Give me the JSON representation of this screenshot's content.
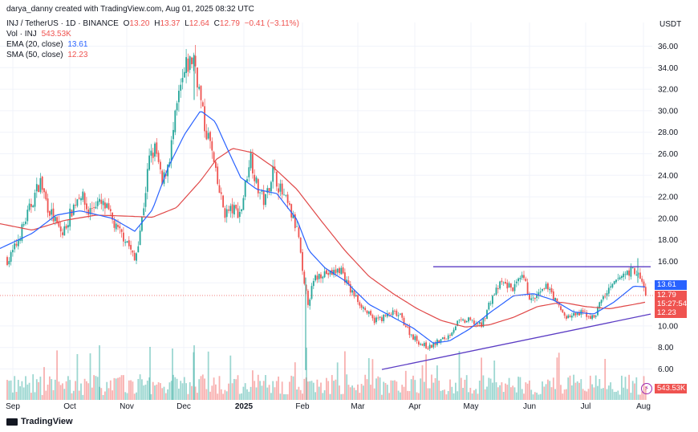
{
  "header": {
    "attribution": "darya_danny created with TradingView.com, Aug 01, 2025 08:32 UTC",
    "symbol": "INJ / TetherUS · 1D · BINANCE",
    "ohlc": {
      "o_label": "O",
      "o": "13.20",
      "h_label": "H",
      "h": "13.37",
      "l_label": "L",
      "l": "12.64",
      "c_label": "C",
      "c": "12.79",
      "change": "−0.41 (−3.11%)"
    },
    "volume_label": "Vol · INJ",
    "volume_value": "543.53K",
    "ema_label": "EMA (20, close)",
    "ema_value": "13.61",
    "sma_label": "SMA (50, close)",
    "sma_value": "12.23"
  },
  "currency": "USDT",
  "badges": {
    "ema": "13.61",
    "price": "12.79",
    "countdown": "15:27:54",
    "sma": "12.23",
    "volume": "543.53K"
  },
  "brand": "TradingView",
  "colors": {
    "up": "#26a69a",
    "down": "#ef5350",
    "ema": "#2962ff",
    "sma": "#e04848",
    "trendline": "#5b3cc4",
    "grid": "#f0f3fa"
  },
  "chart_data": {
    "type": "candlestick",
    "y_ticks": [
      "36.00",
      "34.00",
      "32.00",
      "30.00",
      "28.00",
      "26.00",
      "24.00",
      "22.00",
      "20.00",
      "18.00",
      "16.00",
      "14.00",
      "10.00",
      "8.00",
      "6.00"
    ],
    "ylim": [
      4.5,
      37.5
    ],
    "x_ticks": [
      "Sep",
      "Oct",
      "Nov",
      "Dec",
      "2025",
      "Feb",
      "Mar",
      "Apr",
      "May",
      "Jun",
      "Jul",
      "Aug"
    ],
    "grid": true,
    "series": [
      {
        "name": "EMA (20, close)",
        "last": 13.61
      },
      {
        "name": "SMA (50, close)",
        "last": 12.23
      },
      {
        "name": "Vol · INJ",
        "last": "543.53K"
      }
    ],
    "price_anchors": [
      [
        0,
        17.5
      ],
      [
        10,
        16.0
      ],
      [
        20,
        17.5
      ],
      [
        35,
        20.5
      ],
      [
        50,
        23.5
      ],
      [
        60,
        21.0
      ],
      [
        70,
        19.5
      ],
      [
        78,
        18.5
      ],
      [
        88,
        20.5
      ],
      [
        100,
        22.5
      ],
      [
        110,
        20.5
      ],
      [
        120,
        21.5
      ],
      [
        132,
        21.0
      ],
      [
        145,
        19.0
      ],
      [
        158,
        18.0
      ],
      [
        168,
        16.0
      ],
      [
        178,
        20.5
      ],
      [
        186,
        25.5
      ],
      [
        194,
        26.5
      ],
      [
        202,
        23.0
      ],
      [
        212,
        26.0
      ],
      [
        222,
        31.0
      ],
      [
        232,
        34.0
      ],
      [
        242,
        35.0
      ],
      [
        248,
        32.0
      ],
      [
        255,
        28.5
      ],
      [
        262,
        27.0
      ],
      [
        270,
        23.5
      ],
      [
        280,
        20.5
      ],
      [
        290,
        20.8
      ],
      [
        300,
        20.5
      ],
      [
        312,
        26.0
      ],
      [
        320,
        23.0
      ],
      [
        330,
        21.5
      ],
      [
        340,
        24.5
      ],
      [
        350,
        22.5
      ],
      [
        360,
        21.0
      ],
      [
        372,
        18.5
      ],
      [
        378,
        14.0
      ],
      [
        384,
        12.2
      ],
      [
        392,
        14.3
      ],
      [
        402,
        15.0
      ],
      [
        412,
        14.8
      ],
      [
        425,
        15.3
      ],
      [
        435,
        13.5
      ],
      [
        450,
        12.0
      ],
      [
        465,
        10.5
      ],
      [
        478,
        10.8
      ],
      [
        490,
        11.2
      ],
      [
        500,
        10.8
      ],
      [
        512,
        9.2
      ],
      [
        525,
        8.3
      ],
      [
        535,
        8.0
      ],
      [
        545,
        8.5
      ],
      [
        558,
        9.0
      ],
      [
        570,
        10.3
      ],
      [
        585,
        10.5
      ],
      [
        600,
        10.0
      ],
      [
        612,
        12.5
      ],
      [
        625,
        14.0
      ],
      [
        640,
        13.5
      ],
      [
        652,
        14.5
      ],
      [
        662,
        12.3
      ],
      [
        674,
        13.0
      ],
      [
        684,
        13.8
      ],
      [
        694,
        12.0
      ],
      [
        706,
        10.8
      ],
      [
        716,
        11.0
      ],
      [
        728,
        11.2
      ],
      [
        740,
        10.7
      ],
      [
        750,
        12.5
      ],
      [
        762,
        13.5
      ],
      [
        772,
        14.5
      ],
      [
        782,
        15.0
      ],
      [
        792,
        15.2
      ],
      [
        800,
        14.0
      ],
      [
        806,
        12.79
      ]
    ],
    "ema_anchors": [
      [
        0,
        17.2
      ],
      [
        40,
        18.6
      ],
      [
        70,
        20.3
      ],
      [
        100,
        20.7
      ],
      [
        140,
        20.0
      ],
      [
        168,
        18.8
      ],
      [
        190,
        20.8
      ],
      [
        210,
        24.8
      ],
      [
        230,
        27.8
      ],
      [
        250,
        30.0
      ],
      [
        268,
        29.0
      ],
      [
        285,
        26.2
      ],
      [
        300,
        23.8
      ],
      [
        320,
        22.7
      ],
      [
        345,
        22.3
      ],
      [
        370,
        19.9
      ],
      [
        385,
        17.0
      ],
      [
        405,
        15.4
      ],
      [
        430,
        14.2
      ],
      [
        460,
        12.0
      ],
      [
        490,
        10.8
      ],
      [
        515,
        9.8
      ],
      [
        540,
        8.4
      ],
      [
        560,
        8.6
      ],
      [
        585,
        9.7
      ],
      [
        610,
        11.2
      ],
      [
        640,
        12.8
      ],
      [
        665,
        13.0
      ],
      [
        690,
        12.4
      ],
      [
        715,
        11.3
      ],
      [
        740,
        11.1
      ],
      [
        765,
        12.2
      ],
      [
        790,
        13.7
      ],
      [
        806,
        13.61
      ]
    ],
    "sma_anchors": [
      [
        0,
        19.5
      ],
      [
        40,
        18.9
      ],
      [
        80,
        19.8
      ],
      [
        120,
        20.3
      ],
      [
        160,
        20.2
      ],
      [
        190,
        20.1
      ],
      [
        220,
        21.0
      ],
      [
        250,
        23.5
      ],
      [
        270,
        25.5
      ],
      [
        290,
        26.5
      ],
      [
        315,
        26.1
      ],
      [
        340,
        24.8
      ],
      [
        370,
        22.7
      ],
      [
        400,
        19.8
      ],
      [
        430,
        17.0
      ],
      [
        460,
        14.6
      ],
      [
        490,
        13.0
      ],
      [
        520,
        11.6
      ],
      [
        550,
        10.5
      ],
      [
        580,
        9.9
      ],
      [
        610,
        10.1
      ],
      [
        640,
        10.8
      ],
      [
        670,
        11.8
      ],
      [
        700,
        12.2
      ],
      [
        730,
        11.8
      ],
      [
        760,
        11.6
      ],
      [
        790,
        12.0
      ],
      [
        806,
        12.23
      ]
    ],
    "trendlines": [
      {
        "from": [
          540,
          15.5
        ],
        "to": [
          811,
          15.5
        ]
      },
      {
        "from": [
          476,
          5.95
        ],
        "to": [
          811,
          11.1
        ]
      }
    ],
    "spike_wicks": [
      {
        "x": 381,
        "low": 5.9,
        "high": 14.5
      },
      {
        "x": 242,
        "low": 31.0,
        "high": 35.2
      },
      {
        "x": 795,
        "low": 14.0,
        "high": 16.3
      }
    ]
  }
}
